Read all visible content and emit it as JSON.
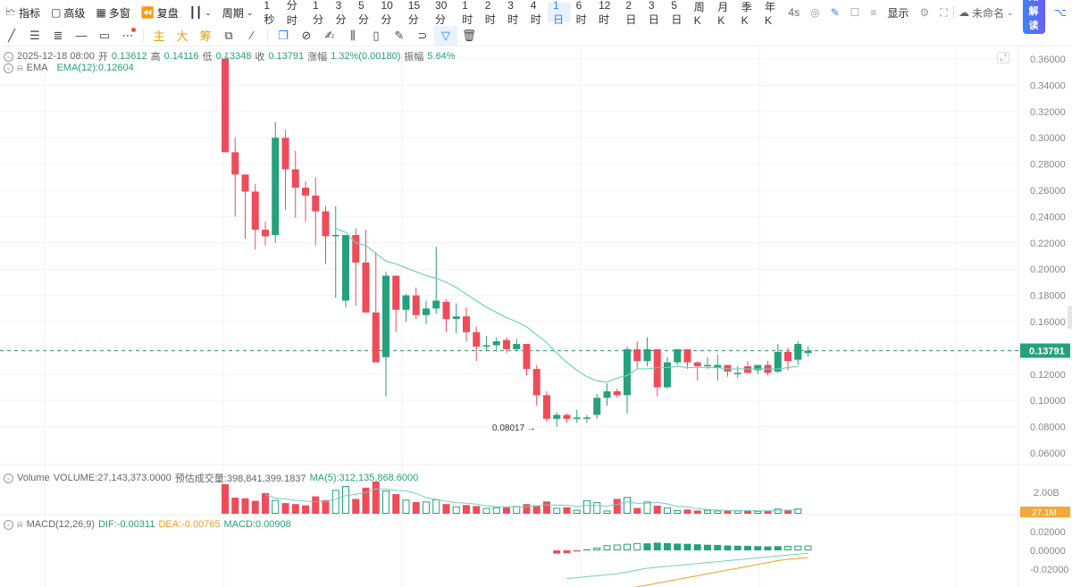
{
  "topbar": {
    "indicators_label": "指标",
    "advanced_label": "高级",
    "multiwindow_label": "多窗",
    "replay_label": "复盘",
    "period_label": "周期",
    "periods": [
      "1秒",
      "分时",
      "1分",
      "3分",
      "5分",
      "10分",
      "15分",
      "30分",
      "1时",
      "2时",
      "3时",
      "4时",
      "1日",
      "6时",
      "12时",
      "2日",
      "3日",
      "5日",
      "周K",
      "月K",
      "季K",
      "年K"
    ],
    "active_period": "1日",
    "refresh_label": "4s",
    "display_label": "显示",
    "layout_name": "未命名",
    "ai_label": "AI解读"
  },
  "drawing_toolbar": {
    "tools": [
      "trend-line",
      "parallel-channel",
      "horizontal-lines",
      "horizontal-line",
      "rectangle",
      "more"
    ],
    "chip_labels": [
      "主",
      "大",
      "筹"
    ]
  },
  "legend": {
    "datetime": "2025-12-18 08:00",
    "open_label": "开",
    "open": "0.13612",
    "high_label": "高",
    "high": "0.14116",
    "low_label": "低",
    "low": "0.13348",
    "close_label": "收",
    "close": "0.13791",
    "change_label": "涨幅",
    "change": "1.32%(0.00180)",
    "amplitude_label": "振幅",
    "amplitude": "5.64%",
    "ema_name": "EMA",
    "ema_value": "EMA(12):0.12604"
  },
  "volume_legend": {
    "name": "Volume",
    "volume": "VOLUME:27,143,373.0000",
    "estimated": "预估成交量:398,841,399.1837",
    "ma": "MA(5):312,135,868.6000"
  },
  "macd_legend": {
    "name": "MACD(12,26,9)",
    "dif": "DIF:-0.00311",
    "dea": "DEA:-0.00765",
    "macd": "MACD:0.00908"
  },
  "price_axis": {
    "ticks": [
      "0.36000",
      "0.34000",
      "0.32000",
      "0.30000",
      "0.28000",
      "0.26000",
      "0.24000",
      "0.22000",
      "0.20000",
      "0.18000",
      "0.16000",
      "0.12000",
      "0.10000",
      "0.08000",
      "0.06000"
    ],
    "current_price": "0.13791",
    "low_marker": "0.08017"
  },
  "volume_axis": {
    "tick": "2.00B",
    "current": "27.1M"
  },
  "macd_axis": {
    "ticks": [
      "0.02000",
      "0.00000",
      "-0.02000"
    ]
  },
  "colors": {
    "up": "#26a17b",
    "down": "#ef4c5a",
    "ema": "#6fd0c0",
    "dea": "#f0a020",
    "grid": "#f3f3f3",
    "accent": "#2d7ff9"
  },
  "chart_data": {
    "type": "candlestick",
    "title": "Daily candlestick chart with EMA(12), Volume and MACD",
    "ylim": [
      0.05,
      0.365
    ],
    "candles": [
      {
        "o": 0.36,
        "h": 0.362,
        "l": 0.29,
        "c": 0.289
      },
      {
        "o": 0.289,
        "h": 0.3,
        "l": 0.24,
        "c": 0.272
      },
      {
        "o": 0.272,
        "h": 0.27,
        "l": 0.223,
        "c": 0.259
      },
      {
        "o": 0.259,
        "h": 0.265,
        "l": 0.215,
        "c": 0.23
      },
      {
        "o": 0.23,
        "h": 0.236,
        "l": 0.218,
        "c": 0.225
      },
      {
        "o": 0.226,
        "h": 0.312,
        "l": 0.22,
        "c": 0.3
      },
      {
        "o": 0.3,
        "h": 0.306,
        "l": 0.245,
        "c": 0.276
      },
      {
        "o": 0.276,
        "h": 0.29,
        "l": 0.239,
        "c": 0.262
      },
      {
        "o": 0.262,
        "h": 0.267,
        "l": 0.236,
        "c": 0.256
      },
      {
        "o": 0.256,
        "h": 0.27,
        "l": 0.218,
        "c": 0.244
      },
      {
        "o": 0.244,
        "h": 0.248,
        "l": 0.204,
        "c": 0.225
      },
      {
        "o": 0.225,
        "h": 0.248,
        "l": 0.178,
        "c": 0.226
      },
      {
        "o": 0.176,
        "h": 0.225,
        "l": 0.171,
        "c": 0.226
      },
      {
        "o": 0.226,
        "h": 0.231,
        "l": 0.172,
        "c": 0.205
      },
      {
        "o": 0.205,
        "h": 0.23,
        "l": 0.188,
        "c": 0.167
      },
      {
        "o": 0.167,
        "h": 0.213,
        "l": 0.13,
        "c": 0.129
      },
      {
        "o": 0.133,
        "h": 0.198,
        "l": 0.103,
        "c": 0.195
      },
      {
        "o": 0.195,
        "h": 0.19,
        "l": 0.152,
        "c": 0.169
      },
      {
        "o": 0.169,
        "h": 0.181,
        "l": 0.16,
        "c": 0.18
      },
      {
        "o": 0.18,
        "h": 0.186,
        "l": 0.162,
        "c": 0.165
      },
      {
        "o": 0.165,
        "h": 0.176,
        "l": 0.158,
        "c": 0.17
      },
      {
        "o": 0.17,
        "h": 0.217,
        "l": 0.166,
        "c": 0.176
      },
      {
        "o": 0.175,
        "h": 0.177,
        "l": 0.152,
        "c": 0.162
      },
      {
        "o": 0.162,
        "h": 0.174,
        "l": 0.151,
        "c": 0.164
      },
      {
        "o": 0.164,
        "h": 0.171,
        "l": 0.145,
        "c": 0.152
      },
      {
        "o": 0.152,
        "h": 0.156,
        "l": 0.13,
        "c": 0.141
      },
      {
        "o": 0.141,
        "h": 0.149,
        "l": 0.138,
        "c": 0.142
      },
      {
        "o": 0.142,
        "h": 0.148,
        "l": 0.137,
        "c": 0.145
      },
      {
        "o": 0.146,
        "h": 0.148,
        "l": 0.136,
        "c": 0.139
      },
      {
        "o": 0.139,
        "h": 0.147,
        "l": 0.138,
        "c": 0.143
      },
      {
        "o": 0.143,
        "h": 0.141,
        "l": 0.119,
        "c": 0.124
      },
      {
        "o": 0.124,
        "h": 0.127,
        "l": 0.096,
        "c": 0.104
      },
      {
        "o": 0.104,
        "h": 0.107,
        "l": 0.084,
        "c": 0.086
      },
      {
        "o": 0.086,
        "h": 0.091,
        "l": 0.08,
        "c": 0.089
      },
      {
        "o": 0.089,
        "h": 0.09,
        "l": 0.083,
        "c": 0.086
      },
      {
        "o": 0.086,
        "h": 0.093,
        "l": 0.083,
        "c": 0.087
      },
      {
        "o": 0.086,
        "h": 0.089,
        "l": 0.083,
        "c": 0.087
      },
      {
        "o": 0.089,
        "h": 0.105,
        "l": 0.086,
        "c": 0.102
      },
      {
        "o": 0.102,
        "h": 0.113,
        "l": 0.096,
        "c": 0.107
      },
      {
        "o": 0.107,
        "h": 0.109,
        "l": 0.102,
        "c": 0.104
      },
      {
        "o": 0.104,
        "h": 0.141,
        "l": 0.09,
        "c": 0.139
      },
      {
        "o": 0.139,
        "h": 0.145,
        "l": 0.124,
        "c": 0.13
      },
      {
        "o": 0.13,
        "h": 0.148,
        "l": 0.126,
        "c": 0.139
      },
      {
        "o": 0.139,
        "h": 0.137,
        "l": 0.103,
        "c": 0.11
      },
      {
        "o": 0.11,
        "h": 0.133,
        "l": 0.109,
        "c": 0.129
      },
      {
        "o": 0.129,
        "h": 0.139,
        "l": 0.127,
        "c": 0.139
      },
      {
        "o": 0.139,
        "h": 0.139,
        "l": 0.124,
        "c": 0.129
      },
      {
        "o": 0.129,
        "h": 0.13,
        "l": 0.115,
        "c": 0.126
      },
      {
        "o": 0.126,
        "h": 0.133,
        "l": 0.124,
        "c": 0.127
      },
      {
        "o": 0.125,
        "h": 0.135,
        "l": 0.115,
        "c": 0.127
      },
      {
        "o": 0.127,
        "h": 0.127,
        "l": 0.118,
        "c": 0.122
      },
      {
        "o": 0.121,
        "h": 0.126,
        "l": 0.117,
        "c": 0.121
      },
      {
        "o": 0.126,
        "h": 0.13,
        "l": 0.121,
        "c": 0.121
      },
      {
        "o": 0.123,
        "h": 0.127,
        "l": 0.12,
        "c": 0.127
      },
      {
        "o": 0.127,
        "h": 0.13,
        "l": 0.119,
        "c": 0.121
      },
      {
        "o": 0.122,
        "h": 0.143,
        "l": 0.121,
        "c": 0.137
      },
      {
        "o": 0.137,
        "h": 0.14,
        "l": 0.123,
        "c": 0.13
      },
      {
        "o": 0.131,
        "h": 0.145,
        "l": 0.127,
        "c": 0.143
      },
      {
        "o": 0.13612,
        "h": 0.14116,
        "l": 0.13348,
        "c": 0.13791
      }
    ],
    "ema12": [
      null,
      null,
      null,
      null,
      null,
      null,
      null,
      null,
      null,
      null,
      null,
      0.231,
      0.228,
      0.22,
      0.218,
      0.212,
      0.206,
      0.204,
      0.201,
      0.198,
      0.195,
      0.193,
      0.19,
      0.186,
      0.181,
      0.176,
      0.171,
      0.167,
      0.163,
      0.16,
      0.156,
      0.15,
      0.144,
      0.136,
      0.129,
      0.123,
      0.118,
      0.115,
      0.114,
      0.117,
      0.119,
      0.124,
      0.124,
      0.125,
      0.125,
      0.126,
      0.125,
      0.125,
      0.125,
      0.125,
      0.124,
      0.124,
      0.124,
      0.124,
      0.124,
      0.124,
      0.125,
      0.126
    ],
    "volume_relative": [
      0.92,
      0.5,
      0.48,
      0.4,
      0.64,
      0.43,
      0.33,
      0.3,
      0.26,
      0.54,
      0.42,
      0.74,
      0.86,
      0.46,
      0.81,
      1.0,
      0.72,
      0.61,
      0.44,
      0.36,
      0.38,
      0.45,
      0.3,
      0.23,
      0.27,
      0.24,
      0.18,
      0.2,
      0.2,
      0.24,
      0.3,
      0.26,
      0.38,
      0.18,
      0.2,
      0.12,
      0.42,
      0.36,
      0.1,
      0.46,
      0.52,
      0.18,
      0.38,
      0.25,
      0.2,
      0.11,
      0.13,
      0.1,
      0.12,
      0.1,
      0.09,
      0.1,
      0.09,
      0.09,
      0.08,
      0.16,
      0.12,
      0.16
    ],
    "macd_hist": [
      -0.0035,
      -0.003,
      -0.0012,
      0.0012,
      0.003,
      0.0055,
      0.0062,
      0.007,
      0.0078,
      0.0075,
      0.0082,
      0.0078,
      0.0072,
      0.007,
      0.0065,
      0.006,
      0.0058,
      0.0052,
      0.005,
      0.0048,
      0.0045,
      0.0042,
      0.0045,
      0.0048,
      0.005,
      0.0052
    ],
    "macd_dif": [
      -0.03,
      -0.029,
      -0.028,
      -0.027,
      -0.026,
      -0.025,
      -0.023,
      -0.021,
      -0.019,
      -0.018,
      -0.017,
      -0.016,
      -0.015,
      -0.014,
      -0.013,
      -0.012,
      -0.011,
      -0.01,
      -0.009,
      -0.008,
      -0.007,
      -0.006,
      -0.005,
      -0.004,
      -0.0031
    ],
    "macd_dea": [
      -0.04,
      -0.039,
      -0.037,
      -0.035,
      -0.033,
      -0.031,
      -0.029,
      -0.027,
      -0.025,
      -0.023,
      -0.021,
      -0.019,
      -0.017,
      -0.015,
      -0.013,
      -0.011,
      -0.0095,
      -0.0085,
      -0.0077
    ]
  }
}
